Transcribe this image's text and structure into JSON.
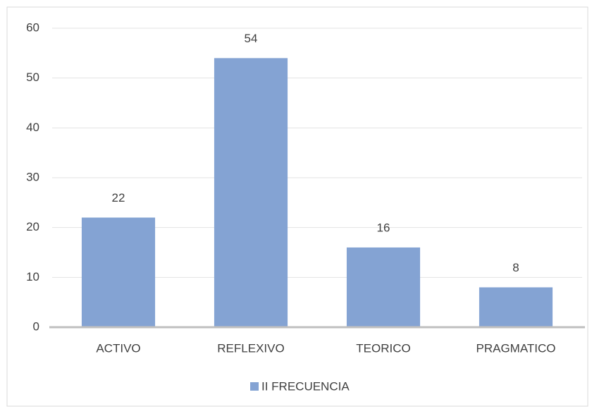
{
  "chart_data": {
    "type": "bar",
    "categories": [
      "ACTIVO",
      "REFLEXIVO",
      "TEORICO",
      "PRAGMATICO"
    ],
    "series": [
      {
        "name": "II FRECUENCIA",
        "color": "#84a3d3",
        "values": [
          22,
          54,
          16,
          8
        ]
      }
    ],
    "ylim": [
      0,
      60
    ],
    "yticks": [
      0,
      10,
      20,
      30,
      40,
      50,
      60
    ],
    "grid": true,
    "data_labels": true,
    "legend": "bottom"
  }
}
